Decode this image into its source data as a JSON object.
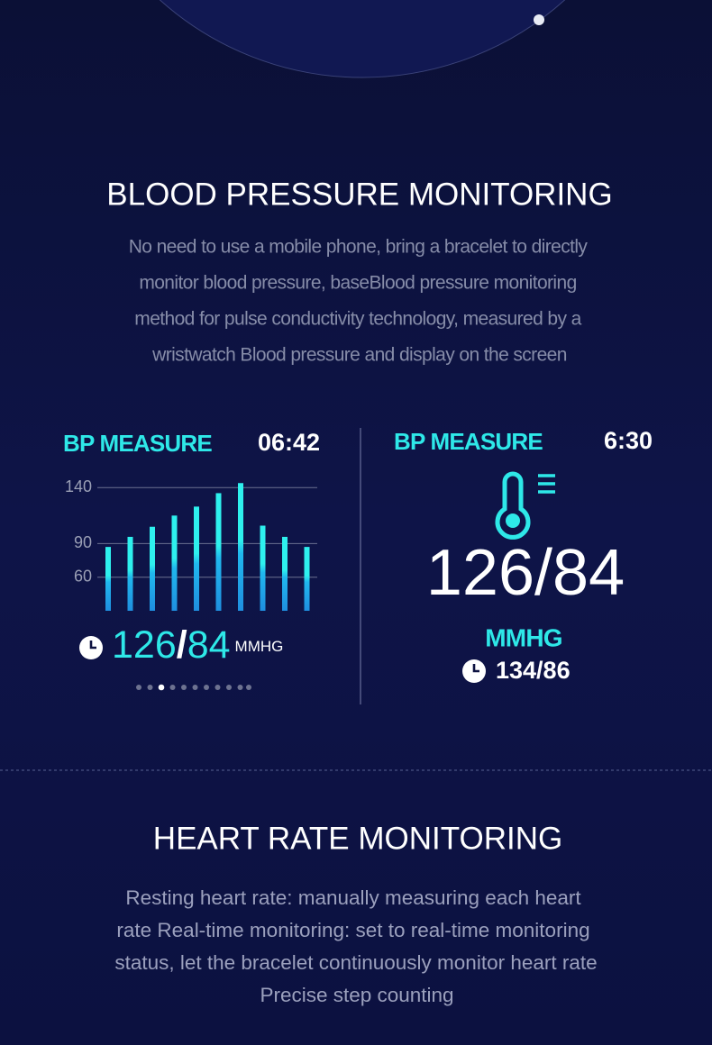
{
  "bp_section": {
    "title": "BLOOD PRESSURE MONITORING",
    "description": [
      "No need to use a mobile phone, bring a bracelet to directly",
      "monitor blood pressure, baseBlood pressure monitoring",
      "method for pulse conductivity technology, measured by a",
      "wristwatch Blood pressure and display on the screen"
    ]
  },
  "left_panel": {
    "label": "BP MEASURE",
    "time": "06:42",
    "chart": {
      "type": "bar",
      "ylim": [
        30,
        145
      ],
      "yticks": [
        60,
        90,
        140
      ],
      "values": [
        87,
        96,
        105,
        115,
        123,
        135,
        144,
        106,
        96,
        87
      ]
    },
    "reading": {
      "systolic": 126,
      "separator": "/",
      "diastolic": 84,
      "unit": "MMHG"
    }
  },
  "right_panel": {
    "label": "BP MEASURE",
    "time": "6:30",
    "reading": "126/84",
    "unit": "MMHG",
    "previous": "134/86"
  },
  "hr_section": {
    "title": "HEART RATE MONITORING",
    "description": [
      "Resting heart rate: manually measuring each heart",
      "rate Real-time monitoring: set to real-time monitoring",
      "status, let the bracelet continuously monitor heart rate",
      "Precise step counting"
    ]
  }
}
